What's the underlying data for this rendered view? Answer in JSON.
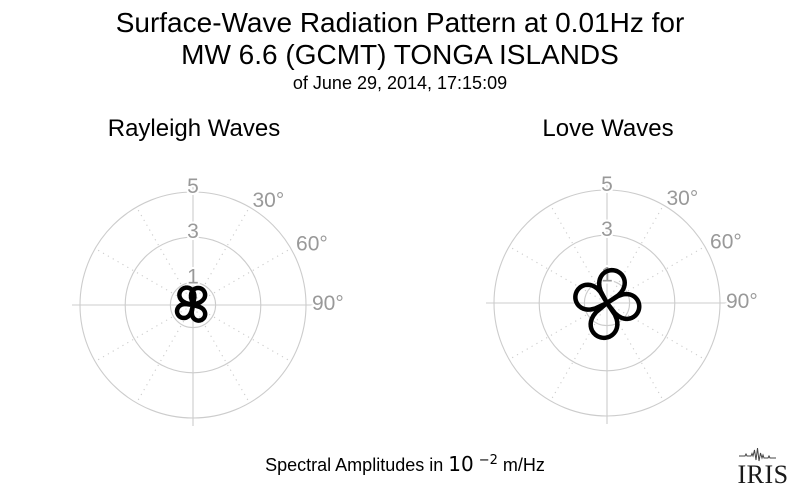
{
  "header": {
    "title_line1": "Surface-Wave Radiation Pattern at 0.01Hz for",
    "title_line2": "MW 6.6 (GCMT) TONGA ISLANDS",
    "title_line3": "of June 29, 2014, 17:15:09"
  },
  "caption": {
    "prefix": "Spectral Amplitudes in",
    "power_base": "10",
    "power_exponent": "−2",
    "suffix": "m/Hz"
  },
  "logo": {
    "text": "IRIS"
  },
  "colors": {
    "background": "#ffffff",
    "grid": "#cccccc",
    "grid_label": "#999999",
    "pattern_stroke": "#000000",
    "title_text": "#000000"
  },
  "chart_data": [
    {
      "type": "polar-rose",
      "title": "Rayleigh Waves",
      "units": "10⁻² m/Hz",
      "r_max": 5,
      "r_ticks": [
        1,
        3,
        5
      ],
      "r_tick_labels": [
        "1",
        "3",
        "5"
      ],
      "angle_labels": [
        {
          "deg": 30,
          "label": "30°"
        },
        {
          "deg": 60,
          "label": "60°"
        },
        {
          "deg": 90,
          "label": "90°"
        }
      ],
      "spoke_degs": [
        30,
        60,
        120,
        150,
        210,
        240,
        300,
        330
      ],
      "petals": [
        {
          "azimuth_deg": 27,
          "amplitude": 0.81
        },
        {
          "azimuth_deg": 148,
          "amplitude": 0.76
        },
        {
          "azimuth_deg": 236,
          "amplitude": 0.79
        },
        {
          "azimuth_deg": 328,
          "amplitude": 0.85
        }
      ]
    },
    {
      "type": "polar-rose",
      "title": "Love Waves",
      "units": "10⁻² m/Hz",
      "r_max": 5,
      "r_ticks": [
        1,
        3,
        5
      ],
      "r_tick_labels": [
        "1",
        "3",
        "5"
      ],
      "angle_labels": [
        {
          "deg": 30,
          "label": "30°"
        },
        {
          "deg": 60,
          "label": "60°"
        },
        {
          "deg": 90,
          "label": "90°"
        }
      ],
      "spoke_degs": [
        30,
        60,
        120,
        150,
        210,
        240,
        300,
        330
      ],
      "petals": [
        {
          "azimuth_deg": 14,
          "amplitude": 1.48
        },
        {
          "azimuth_deg": 100,
          "amplitude": 1.44
        },
        {
          "azimuth_deg": 188,
          "amplitude": 1.55
        },
        {
          "azimuth_deg": 287,
          "amplitude": 1.44
        }
      ]
    }
  ]
}
